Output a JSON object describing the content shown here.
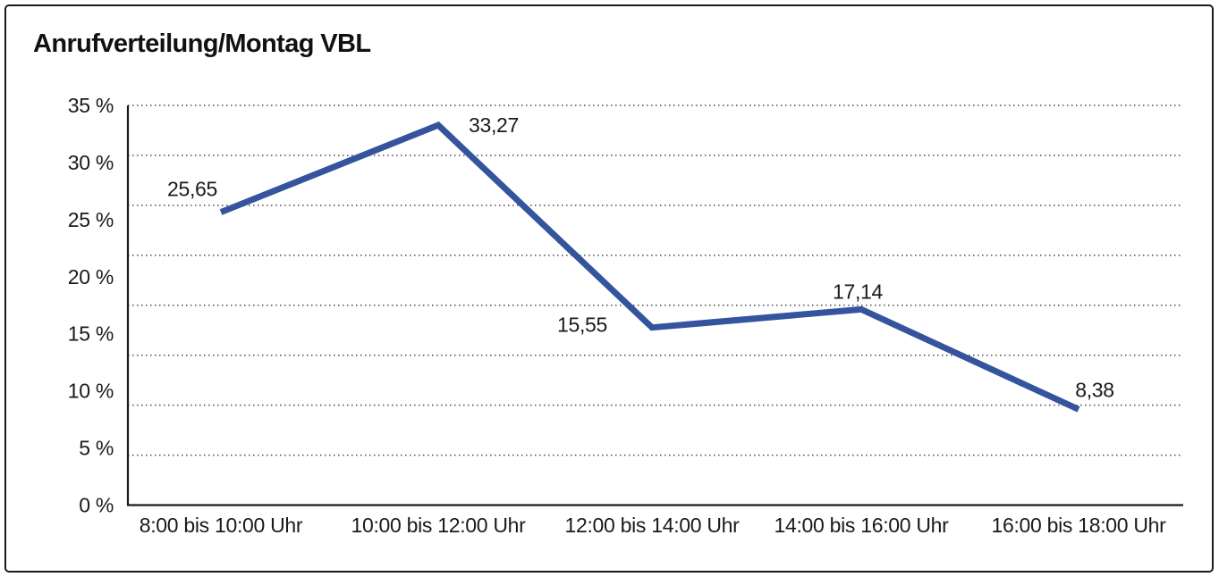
{
  "chart_data": {
    "type": "line",
    "title": "Anrufverteilung/Montag VBL",
    "categories": [
      "8:00 bis 10:00 Uhr",
      "10:00 bis 12:00 Uhr",
      "12:00 bis 14:00 Uhr",
      "14:00 bis 16:00 Uhr",
      "16:00 bis 18:00 Uhr"
    ],
    "series": [
      {
        "name": "Anrufverteilung Montag VBL",
        "values": [
          25.65,
          33.27,
          15.55,
          17.14,
          8.38
        ],
        "point_labels": [
          "25,65",
          "33,27",
          "15,55",
          "17,14",
          "8,38"
        ]
      }
    ],
    "xlabel": "",
    "ylabel": "",
    "ylim": [
      0,
      35
    ],
    "y_tick_step": 5,
    "y_tick_labels": [
      "35 %",
      "30 %",
      "25 %",
      "20 %",
      "15 %",
      "10 %",
      "5 %",
      "0 %"
    ],
    "grid": "horizontal-dotted",
    "gridline_divisions": 8,
    "legend": "none",
    "colors": {
      "line": "#35549E",
      "text": "#1a1a1a",
      "axis": "#1a1a1a",
      "gridline": "#4a4a4a",
      "frame_border": "#1a1a1a",
      "background": "#ffffff"
    }
  }
}
